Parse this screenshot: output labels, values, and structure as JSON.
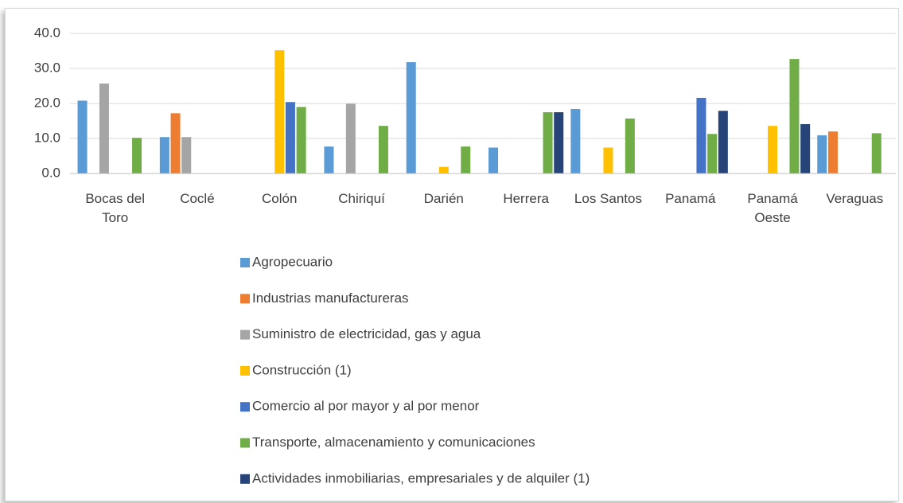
{
  "chart_data": {
    "type": "bar",
    "categories": [
      "Bocas del Toro",
      "Coclé",
      "Colón",
      "Chiriquí",
      "Darién",
      "Herrera",
      "Los Santos",
      "Panamá",
      "Panamá Oeste",
      "Veraguas"
    ],
    "series": [
      {
        "name": "Agropecuario",
        "color": "#5b9bd5",
        "values": [
          20.8,
          10.4,
          0,
          7.7,
          31.8,
          7.4,
          18.4,
          0,
          0,
          10.9
        ]
      },
      {
        "name": "Industrias manufactureras",
        "color": "#ed7d31",
        "values": [
          0,
          17.2,
          0,
          0,
          0,
          0,
          0,
          0,
          0,
          12.0
        ]
      },
      {
        "name": "Suministro de electricidad, gas y agua",
        "color": "#a5a5a5",
        "values": [
          25.7,
          10.4,
          0,
          19.9,
          0,
          0,
          0,
          0,
          0,
          0
        ]
      },
      {
        "name": "Construcción (1)",
        "color": "#ffc000",
        "values": [
          0,
          0,
          35.2,
          0,
          1.9,
          0,
          7.4,
          0,
          13.6,
          0
        ]
      },
      {
        "name": "Comercio al por mayor y al por menor",
        "color": "#4472c4",
        "values": [
          0,
          0,
          20.4,
          0,
          0,
          0,
          0,
          21.6,
          0,
          0
        ]
      },
      {
        "name": "Transporte, almacenamiento y comunicaciones",
        "color": "#70ad47",
        "values": [
          10.2,
          0,
          19.0,
          13.6,
          7.7,
          17.5,
          15.7,
          11.3,
          32.7,
          11.5
        ]
      },
      {
        "name": "Actividades inmobiliarias, empresariales y de alquiler (1)",
        "color": "#264478",
        "values": [
          0,
          0,
          0,
          0,
          0,
          17.5,
          0,
          17.9,
          14.1,
          0
        ]
      }
    ],
    "ylim": [
      0,
      40
    ],
    "yticks": [
      {
        "value": 0,
        "label": "0.0"
      },
      {
        "value": 10,
        "label": "10.0"
      },
      {
        "value": 20,
        "label": "20.0"
      },
      {
        "value": 30,
        "label": "30.0"
      },
      {
        "value": 40,
        "label": "40.0"
      }
    ],
    "grid": true,
    "legend": "bottom"
  }
}
